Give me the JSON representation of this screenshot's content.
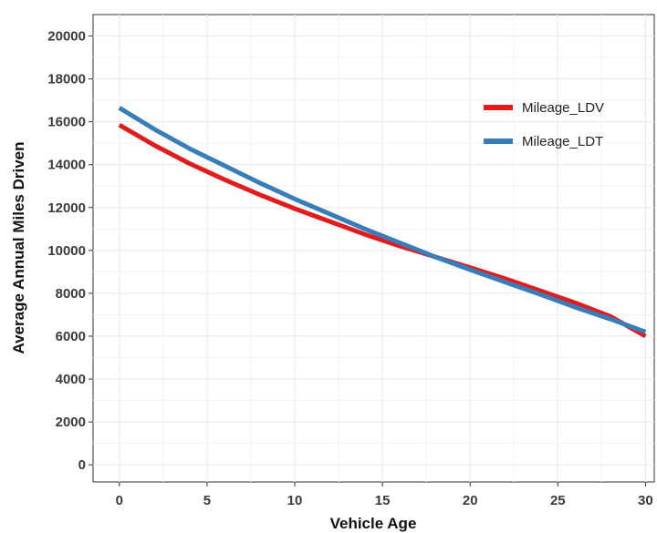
{
  "chart_data": {
    "type": "line",
    "title": "",
    "xlabel": "Vehicle Age",
    "ylabel": "Average Annual Miles Driven",
    "xlim": [
      -1.5,
      30.5
    ],
    "ylim": [
      -800,
      21000
    ],
    "xticks": [
      0,
      5,
      10,
      15,
      20,
      25,
      30
    ],
    "yticks": [
      0,
      2000,
      4000,
      6000,
      8000,
      10000,
      12000,
      14000,
      16000,
      18000,
      20000
    ],
    "grid": true,
    "legend": "top-right",
    "x": [
      0,
      2,
      4,
      6,
      8,
      10,
      12,
      14,
      16,
      18,
      20,
      22,
      24,
      26,
      28,
      30
    ],
    "series": [
      {
        "name": "Mileage_LDV",
        "color": "#e41a1c",
        "values": [
          15850,
          14900,
          14050,
          13300,
          12600,
          11950,
          11350,
          10750,
          10200,
          9700,
          9200,
          8680,
          8120,
          7550,
          6920,
          6000
        ]
      },
      {
        "name": "Mileage_LDT",
        "color": "#377eb8",
        "values": [
          16650,
          15650,
          14750,
          13950,
          13150,
          12400,
          11700,
          11000,
          10350,
          9700,
          9100,
          8520,
          7950,
          7350,
          6800,
          6200
        ]
      }
    ]
  }
}
